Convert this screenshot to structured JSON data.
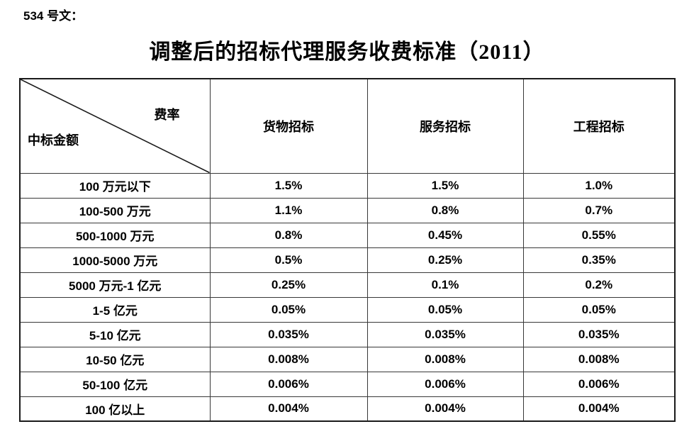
{
  "doc_number": "534 号文：",
  "title": "调整后的招标代理服务收费标准（2011）",
  "table": {
    "corner": {
      "top_right": "费率",
      "bottom_left": "中标金额"
    },
    "columns": [
      "货物招标",
      "服务招标",
      "工程招标"
    ],
    "rows": [
      {
        "amount": "100 万元以下",
        "values": [
          "1.5%",
          "1.5%",
          "1.0%"
        ]
      },
      {
        "amount": "100-500 万元",
        "values": [
          "1.1%",
          "0.8%",
          "0.7%"
        ]
      },
      {
        "amount": "500-1000 万元",
        "values": [
          "0.8%",
          "0.45%",
          "0.55%"
        ]
      },
      {
        "amount": "1000-5000 万元",
        "values": [
          "0.5%",
          "0.25%",
          "0.35%"
        ]
      },
      {
        "amount": "5000 万元-1 亿元",
        "values": [
          "0.25%",
          "0.1%",
          "0.2%"
        ]
      },
      {
        "amount": "1-5 亿元",
        "values": [
          "0.05%",
          "0.05%",
          "0.05%"
        ]
      },
      {
        "amount": "5-10 亿元",
        "values": [
          "0.035%",
          "0.035%",
          "0.035%"
        ]
      },
      {
        "amount": "10-50 亿元",
        "values": [
          "0.008%",
          "0.008%",
          "0.008%"
        ]
      },
      {
        "amount": "50-100 亿元",
        "values": [
          "0.006%",
          "0.006%",
          "0.006%"
        ]
      },
      {
        "amount": "100 亿以上",
        "values": [
          "0.004%",
          "0.004%",
          "0.004%"
        ]
      }
    ]
  },
  "colors": {
    "text": "#000000",
    "border_outer": "#1a1a1a",
    "border_inner": "#383838",
    "background": "#ffffff"
  }
}
